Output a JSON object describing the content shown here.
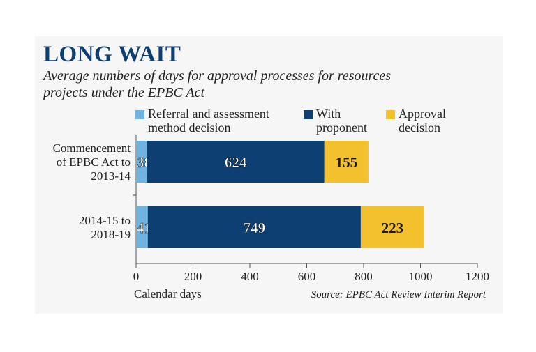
{
  "header": {
    "title": "LONG WAIT",
    "subtitle": "Average numbers of days for approval processes for resources projects under the EPBC Act"
  },
  "source": "Source: EPBC Act Review Interim Report",
  "colors": {
    "referral": "#6fb3e0",
    "proponent": "#0d3f73",
    "approval": "#f4c12e"
  },
  "chart_data": {
    "type": "bar",
    "orientation": "horizontal",
    "stacked": true,
    "categories": [
      "Commencement of EPBC Act to 2013-14",
      "2014-15 to 2018-19"
    ],
    "series": [
      {
        "name": "Referral and assessment method decision",
        "values": [
          38,
          41
        ]
      },
      {
        "name": "With proponent",
        "values": [
          624,
          749
        ]
      },
      {
        "name": "Approval decision",
        "values": [
          155,
          223
        ]
      }
    ],
    "xlabel": "Calendar days",
    "xlim": [
      0,
      1200
    ],
    "xticks": [
      0,
      200,
      400,
      600,
      800,
      1000,
      1200
    ],
    "grid": false,
    "legend_position": "top"
  }
}
